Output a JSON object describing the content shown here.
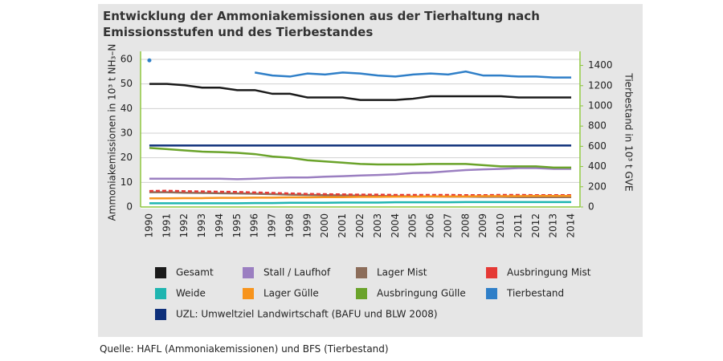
{
  "chart_data": {
    "type": "line",
    "title": "Entwicklung der Ammoniakemissionen aus der Tierhaltung nach Emissionsstufen und des Tierbestandes",
    "y_label": "Ammoniakemissionen in 10³ t NH₃–N",
    "y2_label": "Tierbestand in 10³ t GVE",
    "source": "Quelle: HAFL (Ammoniakemissionen) und BFS (Tierbestand)",
    "categories": [
      "1990",
      "1991",
      "1992",
      "1993",
      "1994",
      "1995",
      "1996",
      "1997",
      "1998",
      "1999",
      "2000",
      "2001",
      "2002",
      "2003",
      "2004",
      "2005",
      "2006",
      "2007",
      "2008",
      "2009",
      "2010",
      "2011",
      "2012",
      "2013",
      "2014"
    ],
    "ylim": [
      0,
      60
    ],
    "yticks": [
      0,
      10,
      20,
      30,
      40,
      50,
      60
    ],
    "y2lim": [
      0,
      1460
    ],
    "y2ticks": [
      0,
      200,
      400,
      600,
      800,
      1000,
      1200,
      1400
    ],
    "grid": true,
    "series": [
      {
        "name": "Gesamt",
        "color": "#1a1a1a",
        "values": [
          50,
          50,
          49.5,
          48.5,
          48.5,
          47.5,
          47.5,
          46,
          46,
          44.5,
          44.5,
          44.5,
          43.5,
          43.5,
          43.5,
          44,
          45,
          45,
          45,
          45,
          45,
          44.5,
          44.5,
          44.5,
          44.5
        ]
      },
      {
        "name": "Stall / Laufhof",
        "color": "#9b7fc1",
        "values": [
          11.5,
          11.5,
          11.5,
          11.5,
          11.5,
          11.3,
          11.5,
          11.8,
          12,
          12,
          12.3,
          12.5,
          12.8,
          13,
          13.3,
          13.8,
          14,
          14.5,
          15,
          15.3,
          15.5,
          15.8,
          15.8,
          15.5,
          15.5
        ]
      },
      {
        "name": "Lager Mist",
        "color": "#8c6d5a",
        "values": [
          6,
          6,
          5.8,
          5.7,
          5.6,
          5.5,
          5.4,
          5.2,
          5,
          4.9,
          4.8,
          4.7,
          4.6,
          4.5,
          4.4,
          4.3,
          4.3,
          4.2,
          4.2,
          4.1,
          4.1,
          4,
          4,
          4,
          4
        ]
      },
      {
        "name": "Ausbringung Mist",
        "color": "#e53935",
        "dash": true,
        "values": [
          6.5,
          6.6,
          6.4,
          6.3,
          6.2,
          6.1,
          5.9,
          5.7,
          5.5,
          5.3,
          5.2,
          5.1,
          5,
          5,
          4.9,
          4.9,
          4.9,
          4.9,
          4.8,
          4.8,
          4.9,
          4.9,
          4.8,
          4.8,
          4.8
        ]
      },
      {
        "name": "Weide",
        "color": "#1fb5b0",
        "values": [
          1.5,
          1.5,
          1.5,
          1.5,
          1.5,
          1.5,
          1.6,
          1.6,
          1.7,
          1.7,
          1.7,
          1.8,
          1.8,
          1.8,
          1.9,
          1.9,
          1.9,
          1.9,
          2,
          2,
          2,
          2,
          2,
          2,
          2
        ]
      },
      {
        "name": "Lager Gülle",
        "color": "#f7941d",
        "values": [
          3.5,
          3.5,
          3.6,
          3.6,
          3.7,
          3.7,
          3.8,
          3.8,
          3.9,
          3.9,
          4,
          4,
          4.1,
          4.1,
          4.2,
          4.2,
          4.3,
          4.3,
          4.3,
          4.4,
          4.4,
          4.4,
          4.5,
          4.5,
          4.5
        ]
      },
      {
        "name": "Ausbringung Gülle",
        "color": "#6aa32a",
        "values": [
          24,
          23.5,
          23,
          22.5,
          22.3,
          22,
          21.5,
          20.5,
          20,
          19,
          18.5,
          18,
          17.5,
          17.3,
          17.3,
          17.3,
          17.5,
          17.5,
          17.5,
          17,
          16.5,
          16.5,
          16.5,
          16,
          16
        ]
      },
      {
        "name": "Tierbestand",
        "color": "#2f7fc8",
        "axis": "y2",
        "values": [
          1450,
          null,
          null,
          null,
          null,
          null,
          1330,
          1300,
          1290,
          1320,
          1310,
          1330,
          1320,
          1300,
          1290,
          1310,
          1320,
          1310,
          1340,
          1300,
          1300,
          1290,
          1290,
          1280,
          1280
        ]
      },
      {
        "name": "UZL: Umweltziel Landwirtschaft (BAFU und BLW 2008)",
        "color": "#0d2f7a",
        "values": [
          25,
          25,
          25,
          25,
          25,
          25,
          25,
          25,
          25,
          25,
          25,
          25,
          25,
          25,
          25,
          25,
          25,
          25,
          25,
          25,
          25,
          25,
          25,
          25,
          25
        ]
      }
    ]
  }
}
